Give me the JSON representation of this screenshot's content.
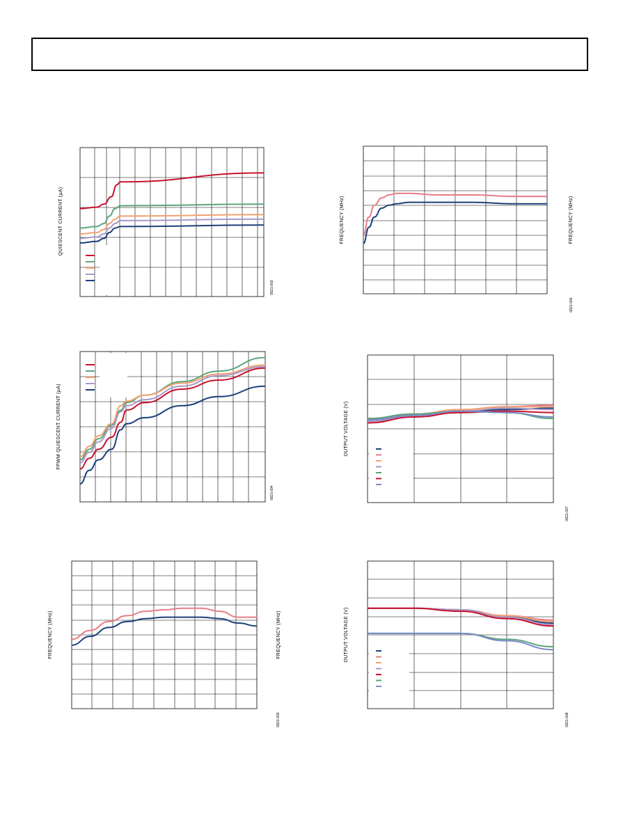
{
  "header": {
    "title": ""
  },
  "chart_data": [
    {
      "type": "line",
      "grid": true,
      "ylabel": "QUIESCENT CURRENT (µA)",
      "figure_id": "0821-003",
      "x_range": [
        0,
        100
      ],
      "y_range": [
        0,
        100
      ],
      "legend_placement": "bottom-left",
      "series": [
        {
          "color": "#c8102e",
          "x": [
            0,
            9,
            13,
            17,
            20,
            22,
            100
          ],
          "y": [
            59,
            60,
            62,
            67,
            75,
            77,
            83
          ]
        },
        {
          "color": "#5aa67a",
          "x": [
            0,
            9,
            13,
            16,
            19,
            22,
            100
          ],
          "y": [
            46,
            47,
            49,
            54,
            59,
            61,
            62
          ]
        },
        {
          "color": "#f2a070",
          "x": [
            0,
            9,
            13,
            16,
            19,
            22,
            100
          ],
          "y": [
            42,
            43,
            45,
            49,
            52,
            54,
            55
          ]
        },
        {
          "color": "#a898c8",
          "x": [
            0,
            9,
            13,
            16,
            19,
            22,
            100
          ],
          "y": [
            39,
            40,
            42,
            46,
            49,
            51,
            52
          ]
        },
        {
          "color": "#1c3f7a",
          "x": [
            0,
            9,
            13,
            16,
            19,
            22,
            100
          ],
          "y": [
            36,
            37,
            39,
            43,
            46,
            47,
            48
          ]
        }
      ]
    },
    {
      "type": "line",
      "grid": true,
      "ylabel": "FREQUENCY (MHz)",
      "y2label": "FREQUENCY (MHz)",
      "figure_id": "0821-006",
      "x_range": [
        0,
        100
      ],
      "y_range": [
        0,
        100
      ],
      "series": [
        {
          "color": "#e87c85",
          "x": [
            0,
            3,
            6,
            10,
            14,
            18,
            25,
            40,
            60,
            80,
            100
          ],
          "y": [
            40,
            52,
            60,
            65,
            67,
            68,
            68,
            67,
            67,
            66,
            66
          ]
        },
        {
          "color": "#1c3f7a",
          "x": [
            0,
            3,
            6,
            10,
            14,
            18,
            25,
            40,
            60,
            80,
            100
          ],
          "y": [
            34,
            45,
            52,
            58,
            60,
            61,
            62,
            62,
            62,
            61,
            61
          ]
        }
      ]
    },
    {
      "type": "line",
      "grid": true,
      "ylabel": "FPWM QUIESCENT CURRENT (µA)",
      "figure_id": "0821-004",
      "x_range": [
        0,
        100
      ],
      "y_range": [
        0,
        100
      ],
      "legend_placement": "top-left",
      "series": [
        {
          "color": "#c8102e",
          "x": [
            0,
            5,
            10,
            17,
            22,
            25,
            35,
            55,
            75,
            100
          ],
          "y": [
            22,
            29,
            35,
            43,
            53,
            61,
            66,
            75,
            81,
            89
          ]
        },
        {
          "color": "#5aa67a",
          "x": [
            0,
            5,
            10,
            17,
            22,
            25,
            35,
            55,
            75,
            100
          ],
          "y": [
            28,
            35,
            42,
            51,
            61,
            66,
            71,
            80,
            87,
            96
          ]
        },
        {
          "color": "#f2a070",
          "x": [
            0,
            5,
            10,
            17,
            22,
            25,
            35,
            55,
            75,
            100
          ],
          "y": [
            30,
            37,
            44,
            52,
            64,
            67,
            71,
            79,
            85,
            91
          ]
        },
        {
          "color": "#a898c8",
          "x": [
            0,
            5,
            10,
            17,
            22,
            25,
            35,
            55,
            75,
            100
          ],
          "y": [
            26,
            33,
            40,
            49,
            60,
            64,
            68,
            77,
            84,
            90
          ]
        },
        {
          "color": "#1c3f7a",
          "x": [
            0,
            5,
            10,
            17,
            22,
            25,
            35,
            55,
            75,
            100
          ],
          "y": [
            12,
            21,
            28,
            35,
            48,
            52,
            56,
            64,
            70,
            77
          ]
        }
      ]
    },
    {
      "type": "line",
      "grid": true,
      "ylabel": "OUTPUT VOLTAGE (V)",
      "figure_id": "0821-007",
      "x_range": [
        0,
        100
      ],
      "y_range": [
        0,
        100
      ],
      "legend_placement": "bottom-left",
      "series": [
        {
          "color": "#1c3f7a",
          "x": [
            0,
            25,
            50,
            75,
            100
          ],
          "y": [
            57,
            60,
            62,
            63,
            64
          ]
        },
        {
          "color": "#e87c85",
          "x": [
            0,
            25,
            50,
            75,
            100
          ],
          "y": [
            56,
            60,
            63,
            65,
            66
          ]
        },
        {
          "color": "#f2a070",
          "x": [
            0,
            25,
            50,
            75,
            100
          ],
          "y": [
            56,
            60,
            63,
            65,
            65
          ]
        },
        {
          "color": "#a898c8",
          "x": [
            0,
            25,
            50,
            75,
            100
          ],
          "y": [
            55,
            59,
            62,
            64,
            63
          ]
        },
        {
          "color": "#5aa67a",
          "x": [
            0,
            25,
            50,
            75,
            100
          ],
          "y": [
            57,
            60,
            62,
            61,
            57
          ]
        },
        {
          "color": "#c8102e",
          "x": [
            0,
            25,
            50,
            75,
            100
          ],
          "y": [
            54,
            58,
            61,
            62,
            61
          ]
        },
        {
          "color": "#7a8ac8",
          "x": [
            0,
            25,
            50,
            75,
            100
          ],
          "y": [
            56,
            59,
            62,
            61,
            58
          ]
        }
      ]
    },
    {
      "type": "line",
      "grid": true,
      "ylabel": "FREQUENCY (MHz)",
      "y2label": "FREQUENCY (MHz)",
      "figure_id": "0821-005",
      "x_range": [
        0,
        100
      ],
      "y_range": [
        0,
        100
      ],
      "series": [
        {
          "color": "#e87c85",
          "x": [
            0,
            10,
            20,
            30,
            40,
            50,
            60,
            70,
            80,
            90,
            100
          ],
          "y": [
            47,
            53,
            59,
            63,
            66,
            67,
            68,
            68,
            66,
            62,
            62
          ]
        },
        {
          "color": "#1c3f7a",
          "x": [
            0,
            10,
            20,
            30,
            40,
            50,
            60,
            70,
            80,
            90,
            100
          ],
          "y": [
            43,
            49,
            55,
            59,
            61,
            62,
            62,
            62,
            61,
            58,
            56
          ]
        }
      ]
    },
    {
      "type": "line",
      "grid": true,
      "ylabel": "OUTPUT VOLTAGE (V)",
      "figure_id": "0821-008",
      "x_range": [
        0,
        100
      ],
      "y_range": [
        0,
        100
      ],
      "legend_placement": "bottom-left",
      "series": [
        {
          "color": "#1c3f7a",
          "x": [
            0,
            25,
            50,
            75,
            100
          ],
          "y": [
            68,
            68,
            67,
            62,
            58
          ]
        },
        {
          "color": "#e87c85",
          "x": [
            0,
            25,
            50,
            75,
            100
          ],
          "y": [
            68,
            68,
            67,
            63,
            60
          ]
        },
        {
          "color": "#f2a070",
          "x": [
            0,
            25,
            50,
            75,
            100
          ],
          "y": [
            68,
            68,
            67,
            63,
            59
          ]
        },
        {
          "color": "#a898c8",
          "x": [
            0,
            25,
            50,
            75,
            100
          ],
          "y": [
            68,
            68,
            67,
            62,
            57
          ]
        },
        {
          "color": "#c8102e",
          "x": [
            0,
            25,
            50,
            75,
            100
          ],
          "y": [
            68,
            68,
            66,
            61,
            56
          ]
        },
        {
          "color": "#5aa67a",
          "x": [
            0,
            25,
            50,
            75,
            100
          ],
          "y": [
            51,
            51,
            51,
            47,
            42
          ]
        },
        {
          "color": "#7a8ac8",
          "x": [
            0,
            25,
            50,
            75,
            100
          ],
          "y": [
            51,
            51,
            51,
            46,
            40
          ]
        }
      ]
    }
  ]
}
